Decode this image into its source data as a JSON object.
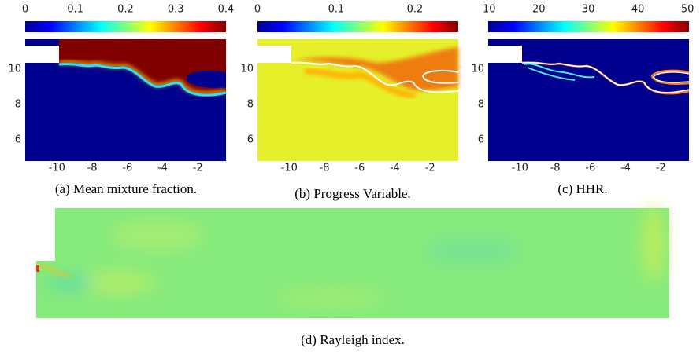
{
  "panels": [
    {
      "caption": "(a) Mean mixture fraction.",
      "clim": [
        0,
        0.4
      ],
      "cticks": [
        0,
        0.1,
        0.2,
        0.3,
        0.4
      ],
      "xlim": [
        -11.8,
        -0.4
      ],
      "ylim": [
        4.8,
        11.7
      ],
      "xticks": [
        -10,
        -8,
        -6,
        -4,
        -2
      ],
      "yticks": [
        6,
        8,
        10
      ]
    },
    {
      "caption": "(b) Progress Variable.",
      "clim": [
        0,
        0.255
      ],
      "cticks": [
        0,
        0.1,
        0.2
      ],
      "xlim": [
        -11.8,
        -0.4
      ],
      "ylim": [
        4.8,
        11.7
      ],
      "xticks": [
        -10,
        -8,
        -6,
        -4,
        -2
      ],
      "yticks": [
        6,
        8,
        10
      ]
    },
    {
      "caption": "(c) HHR.",
      "clim": [
        9.8,
        50.3
      ],
      "cticks": [
        10,
        20,
        30,
        40,
        50
      ],
      "xlim": [
        -11.8,
        -0.4
      ],
      "ylim": [
        4.8,
        11.7
      ],
      "xticks": [
        -10,
        -8,
        -6,
        -4,
        -2
      ],
      "yticks": [
        6,
        8,
        10
      ]
    },
    {
      "caption": "(d) Rayleigh index."
    }
  ]
}
